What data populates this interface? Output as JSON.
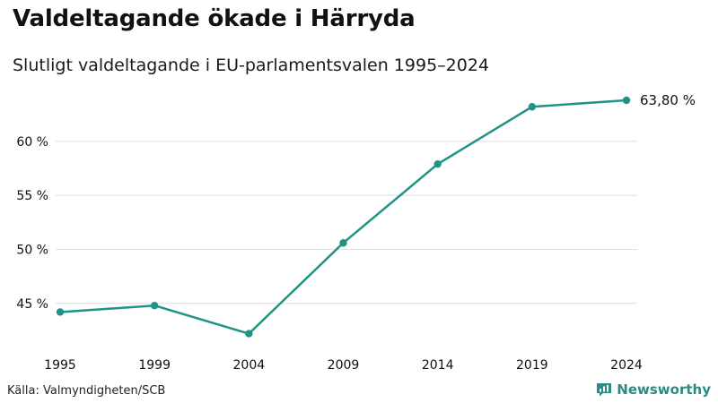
{
  "title": "Valdeltagande ökade i Härryda",
  "subtitle": "Slutligt valdeltagande i EU-parlamentsvalen 1995–2024",
  "source": "Källa: Valmyndigheten/SCB",
  "brand": {
    "name": "Newsworthy",
    "logo_icon": "bar-chart-icon",
    "color": "#2a8c83"
  },
  "colors": {
    "line": "#1f9486",
    "grid": "#dddddd",
    "text": "#111111"
  },
  "chart_data": {
    "type": "line",
    "x": [
      "1995",
      "1999",
      "2004",
      "2009",
      "2014",
      "2019",
      "2024"
    ],
    "series": [
      {
        "values": [
          44.2,
          44.8,
          42.2,
          50.6,
          57.9,
          63.2,
          63.8
        ]
      }
    ],
    "y_ticks": [
      45,
      50,
      55,
      60
    ],
    "y_tick_labels": [
      "45 %",
      "50 %",
      "55 %",
      "60 %"
    ],
    "ylim": [
      42,
      63.8
    ],
    "end_label": "63,80 %",
    "grid": true,
    "xlabel": "",
    "ylabel": ""
  }
}
